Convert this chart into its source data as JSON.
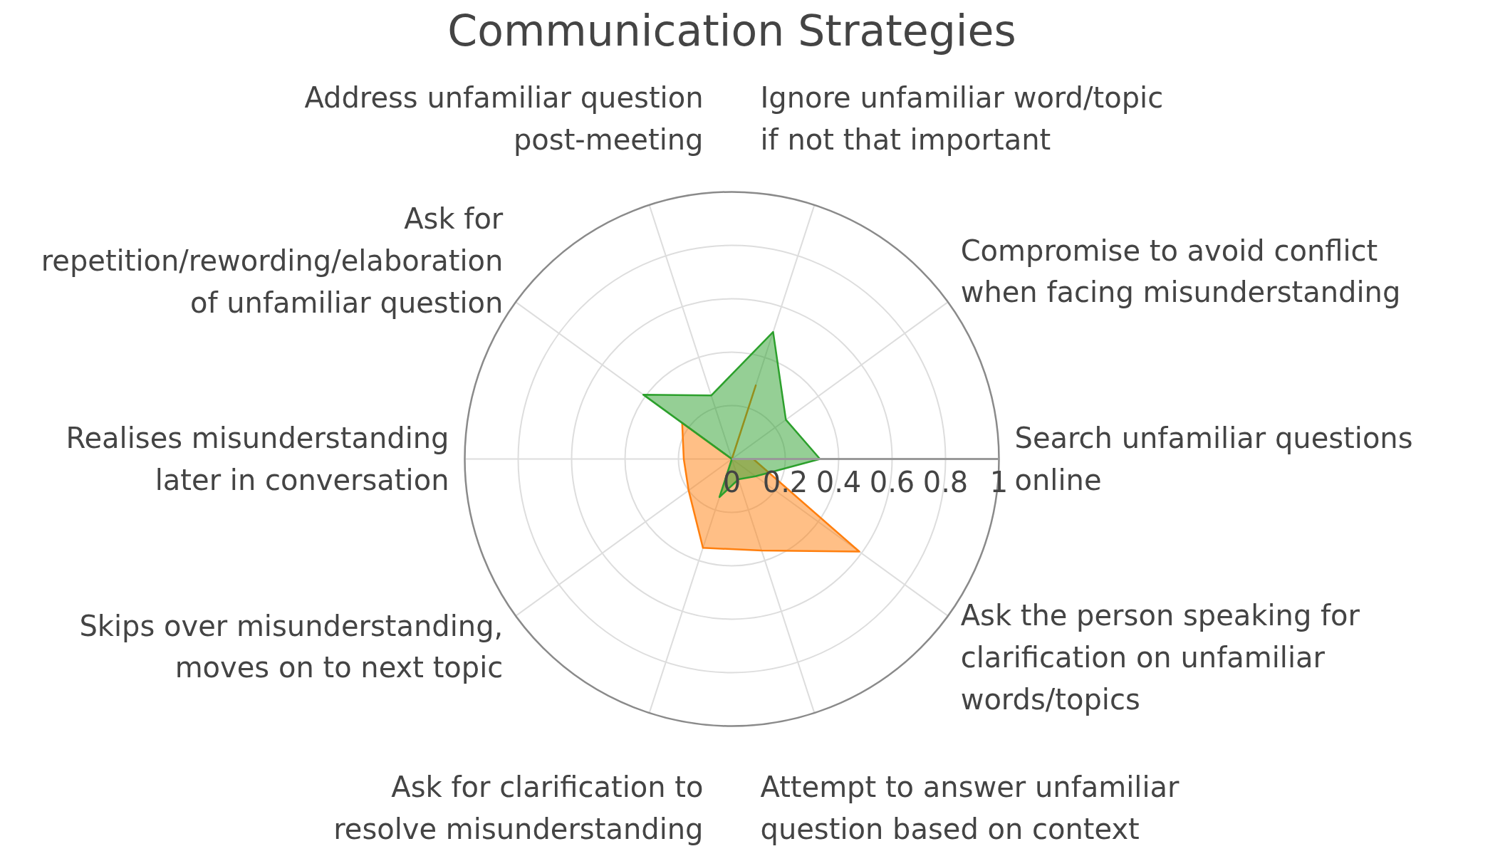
{
  "chart_data": {
    "type": "radar",
    "title": "Communication Strategies",
    "categories": [
      "Ignore unfamiliar word/topic\nif not that important",
      "Compromise to avoid conflict\nwhen facing misunderstanding",
      "Search unfamiliar questions\nonline",
      "Ask the person speaking for\nclarification on unfamiliar\nwords/topics",
      "Attempt to answer unfamiliar\nquestion based on context",
      "Ask for clarification to\nresolve misunderstanding",
      "Skips over misunderstanding,\nmoves on to next topic",
      "Realises misunderstanding\nlater in conversation",
      "Ask for\nrepetition/rewording/elaboration\nof unfamiliar question",
      "Address unfamiliar question\npost-meeting"
    ],
    "series": [
      {
        "color": "#ff7f0e",
        "values": [
          0.29,
          0,
          0.08,
          0.59,
          0.36,
          0.35,
          0.2,
          0.18,
          0.23,
          0
        ]
      },
      {
        "color": "#2ca02c",
        "values": [
          0.5,
          0.25,
          0.33,
          0.11,
          0.08,
          0.15,
          0,
          0,
          0.41,
          0.25
        ]
      }
    ],
    "ylim": [
      0,
      1
    ],
    "yticks": [
      0,
      0.2,
      0.4,
      0.6,
      0.8,
      1
    ],
    "grid": true
  }
}
